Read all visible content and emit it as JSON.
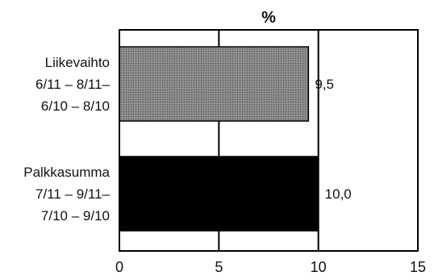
{
  "chart_data": {
    "type": "bar",
    "orientation": "horizontal",
    "title": "%",
    "xlim": [
      0,
      15
    ],
    "xticks": [
      0,
      5,
      10,
      15
    ],
    "grid": "vertical",
    "categories": [
      [
        "Liikevaihto",
        "6/11 – 8/11–",
        "6/10 – 8/10"
      ],
      [
        "Palkkasumma",
        "7/11 – 9/11–",
        "7/10 – 9/10"
      ]
    ],
    "values": [
      9.5,
      10.0
    ],
    "value_labels": [
      "9,5",
      "10,0"
    ],
    "bar_colors": [
      "#8c8c8c",
      "#000000"
    ]
  }
}
